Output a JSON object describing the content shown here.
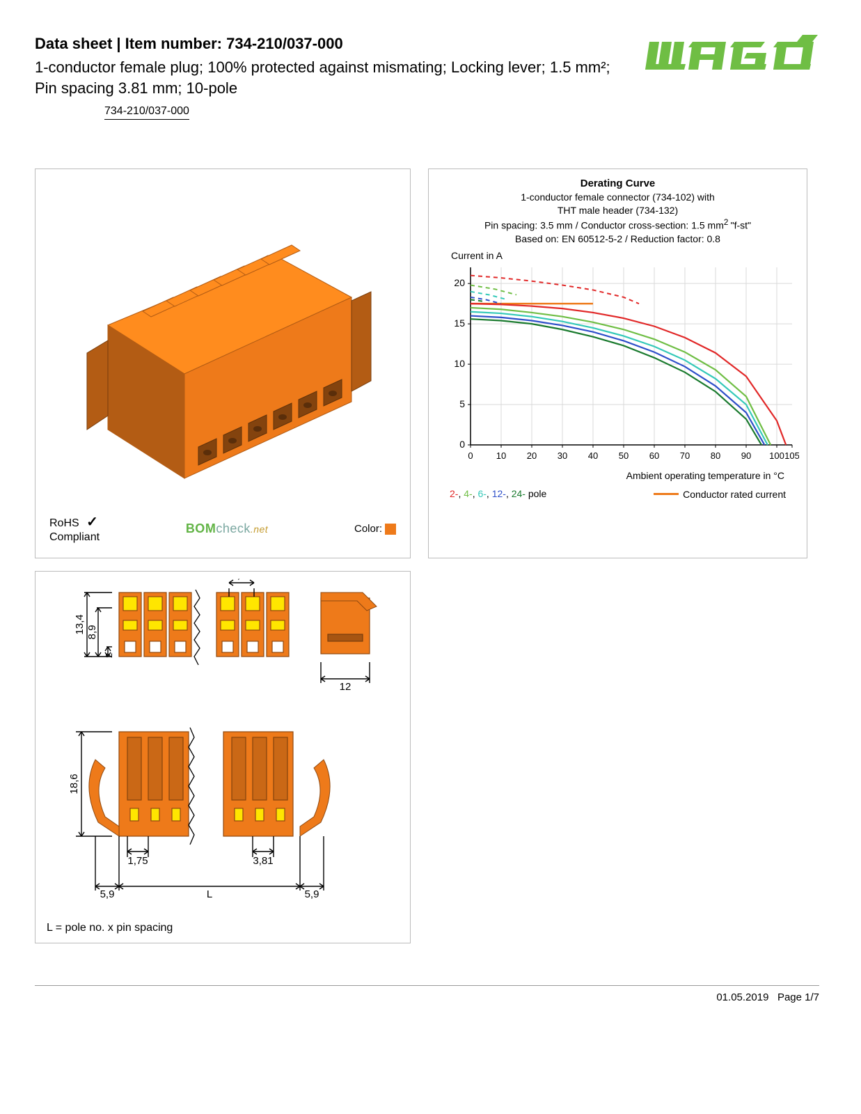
{
  "header": {
    "title_prefix": "Data sheet  |  Item number: ",
    "item_number": "734-210/037-000",
    "description": "1-conductor female plug; 100% protected against mismating; Locking lever; 1.5 mm²; Pin spacing 3.81 mm; 10-pole",
    "part_link": "734-210/037-000",
    "logo_color": "#6fbe44"
  },
  "product_panel": {
    "connector_color": "#ee7a1a",
    "rohs_line1": "RoHS",
    "rohs_line2": "Compliant",
    "bom_text_bom": "BOM",
    "bom_text_check": "check",
    "bom_text_net": ".net",
    "color_label": "Color:",
    "color_swatch": "#ee7a1a"
  },
  "chart": {
    "title": "Derating Curve",
    "sub_line1": "1-conductor female connector (734-102) with",
    "sub_line2": "THT male header (734-132)",
    "sub_line3_a": "Pin spacing: 3.5 mm / Conductor cross-section: 1.5 mm",
    "sub_line3_b": "\"f-st\"",
    "sub_line4": "Based on: EN 60512-5-2 / Reduction factor: 0.8",
    "y_axis_label": "Current in A",
    "x_axis_label": "Ambient operating temperature in °C",
    "y_ticks": [
      0,
      5,
      10,
      15,
      20
    ],
    "y_max": 22,
    "x_ticks": [
      0,
      10,
      20,
      30,
      40,
      50,
      60,
      70,
      80,
      90,
      100,
      105
    ],
    "x_max": 105,
    "grid_color": "#d9d9d9",
    "axis_color": "#000000",
    "colors": {
      "p2": "#e12727",
      "p4": "#6fbe44",
      "p6": "#34c9b9",
      "p12": "#2e4fc9",
      "p24": "#1a7a2e",
      "rated": "#ee7a1a"
    },
    "rated_current": 17.5,
    "rated_x_end": 40,
    "series": {
      "p2_dash": [
        [
          0,
          21.0
        ],
        [
          10,
          20.7
        ],
        [
          20,
          20.3
        ],
        [
          30,
          19.8
        ],
        [
          40,
          19.2
        ],
        [
          50,
          18.3
        ],
        [
          55,
          17.5
        ]
      ],
      "p2": [
        [
          0,
          17.5
        ],
        [
          10,
          17.4
        ],
        [
          20,
          17.2
        ],
        [
          30,
          16.9
        ],
        [
          40,
          16.4
        ],
        [
          50,
          15.7
        ],
        [
          60,
          14.7
        ],
        [
          70,
          13.3
        ],
        [
          80,
          11.4
        ],
        [
          90,
          8.5
        ],
        [
          100,
          3.0
        ],
        [
          103,
          0
        ]
      ],
      "p4_dash": [
        [
          0,
          19.8
        ],
        [
          8,
          19.3
        ],
        [
          15,
          18.6
        ]
      ],
      "p4": [
        [
          0,
          17.0
        ],
        [
          10,
          16.8
        ],
        [
          20,
          16.4
        ],
        [
          30,
          15.9
        ],
        [
          40,
          15.2
        ],
        [
          50,
          14.3
        ],
        [
          60,
          13.1
        ],
        [
          70,
          11.5
        ],
        [
          80,
          9.3
        ],
        [
          90,
          6.0
        ],
        [
          98,
          0
        ]
      ],
      "p6_dash": [
        [
          0,
          19.0
        ],
        [
          6,
          18.6
        ],
        [
          12,
          18.0
        ]
      ],
      "p6": [
        [
          0,
          16.5
        ],
        [
          10,
          16.3
        ],
        [
          20,
          15.9
        ],
        [
          30,
          15.3
        ],
        [
          40,
          14.5
        ],
        [
          50,
          13.5
        ],
        [
          60,
          12.2
        ],
        [
          70,
          10.5
        ],
        [
          80,
          8.2
        ],
        [
          90,
          5.0
        ],
        [
          97,
          0
        ]
      ],
      "p12_dash": [
        [
          0,
          18.3
        ],
        [
          5,
          18.0
        ],
        [
          10,
          17.5
        ]
      ],
      "p12": [
        [
          0,
          16.0
        ],
        [
          10,
          15.8
        ],
        [
          20,
          15.4
        ],
        [
          30,
          14.8
        ],
        [
          40,
          14.0
        ],
        [
          50,
          12.9
        ],
        [
          60,
          11.5
        ],
        [
          70,
          9.7
        ],
        [
          80,
          7.3
        ],
        [
          90,
          4.0
        ],
        [
          96,
          0
        ]
      ],
      "p24_dash": [
        [
          0,
          18.0
        ],
        [
          4,
          17.8
        ]
      ],
      "p24": [
        [
          0,
          15.6
        ],
        [
          10,
          15.4
        ],
        [
          20,
          15.0
        ],
        [
          30,
          14.3
        ],
        [
          40,
          13.4
        ],
        [
          50,
          12.3
        ],
        [
          60,
          10.8
        ],
        [
          70,
          9.0
        ],
        [
          80,
          6.6
        ],
        [
          90,
          3.2
        ],
        [
          95,
          0
        ]
      ]
    },
    "legend_poles": [
      {
        "label": "2-",
        "color": "#e12727"
      },
      {
        "label": ", "
      },
      {
        "label": "4-",
        "color": "#6fbe44"
      },
      {
        "label": ", "
      },
      {
        "label": "6-",
        "color": "#34c9b9"
      },
      {
        "label": ", "
      },
      {
        "label": "12-",
        "color": "#2e4fc9"
      },
      {
        "label": ", "
      },
      {
        "label": "24-",
        "color": "#1a7a2e"
      },
      {
        "label": " pole"
      }
    ],
    "legend_rated_label": "Conductor rated current"
  },
  "dims": {
    "h_total": "13,4",
    "h_mid": "8,9",
    "h_bot": "2",
    "pitch_top": "3,81",
    "side_w": "12",
    "front_h": "18,6",
    "off1": "1,75",
    "off2": "3,81",
    "ear_l": "5,9",
    "ear_r": "5,9",
    "L": "L",
    "body_color": "#ee7a1a",
    "accent_color": "#ffe600",
    "line_color": "#000000",
    "note": "L = pole no. x pin spacing"
  },
  "footer": {
    "date": "01.05.2019",
    "page": "Page 1/7"
  }
}
